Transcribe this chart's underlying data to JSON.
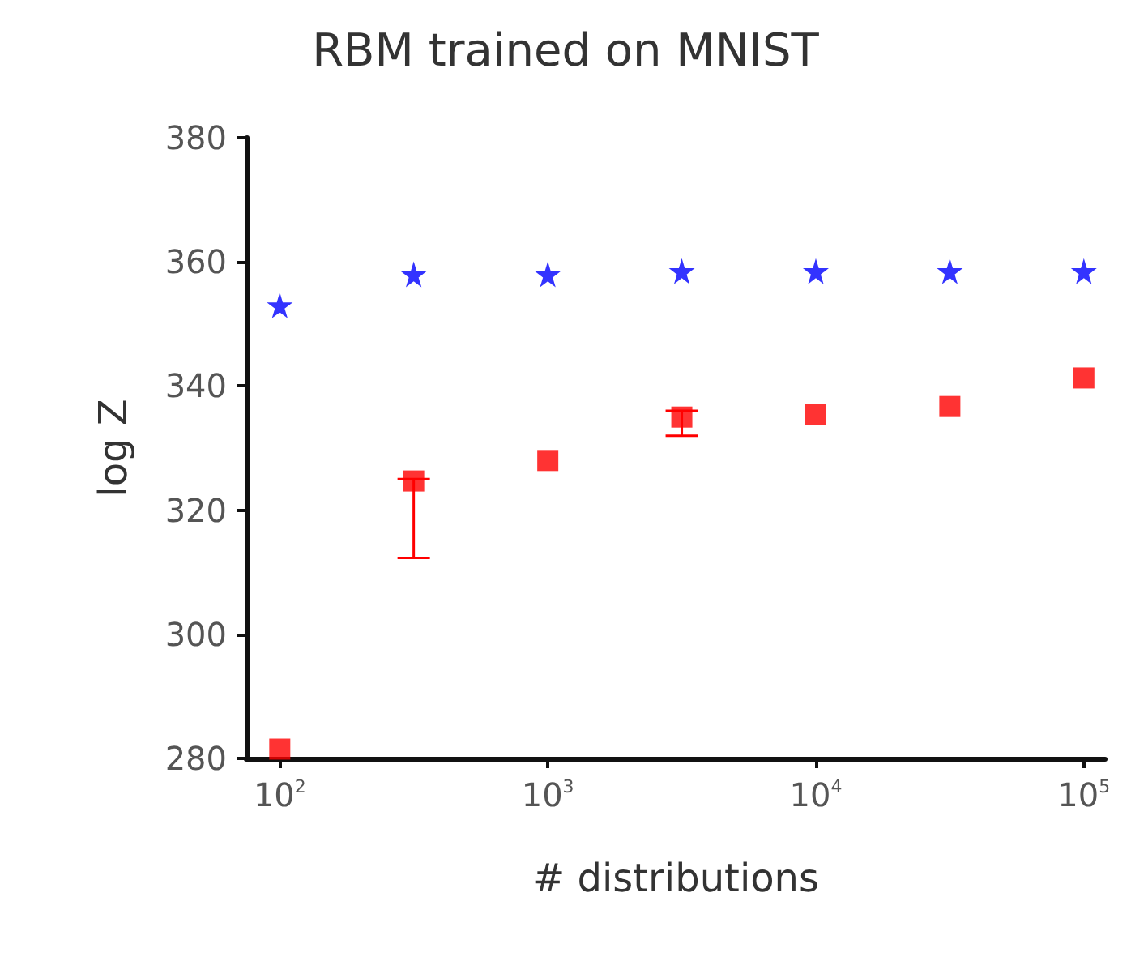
{
  "chart_data": {
    "type": "scatter",
    "title": "RBM trained on MNIST",
    "xlabel": "# distributions",
    "ylabel": "log Z",
    "log": "x",
    "x": [
      100,
      316,
      1000,
      3162,
      10000,
      31623,
      100000
    ],
    "series": [
      {
        "color": "#0000ff",
        "marker": "star",
        "values": [
          353,
          358,
          358,
          358.5,
          358.5,
          358.5,
          358.5
        ]
      },
      {
        "color": "#ff0000",
        "marker": "square",
        "values": [
          281.5,
          324.7,
          328,
          335,
          335.4,
          336.7,
          341.3
        ],
        "errors": [
          null,
          [
            312.3,
            325
          ],
          null,
          [
            332,
            336
          ],
          null,
          null,
          null
        ]
      }
    ],
    "xlim": [
      75,
      120000
    ],
    "xticks": [
      {
        "value": 100,
        "label": "10$^{2}$"
      },
      {
        "value": 1000,
        "label": "10$^{3}$"
      },
      {
        "value": 10000,
        "label": "10$^{4}$"
      },
      {
        "value": 100000,
        "label": "10$^{5}$"
      }
    ],
    "ylim": [
      280,
      380
    ],
    "yticks": [
      280,
      300,
      320,
      340,
      360,
      380
    ],
    "grid": false
  }
}
